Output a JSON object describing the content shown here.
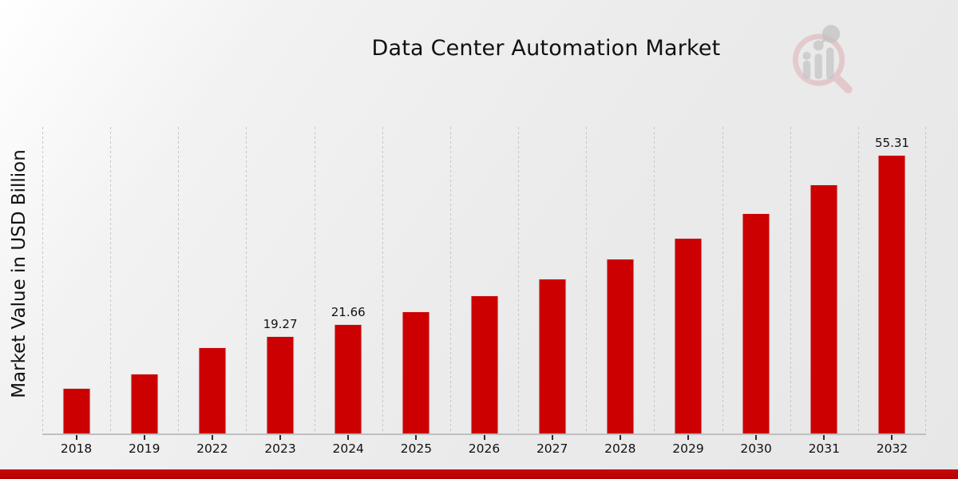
{
  "title": "Data Center Automation Market",
  "y_axis_label": "Market Value in USD Billion",
  "logo": {
    "name": "market-research-future-watermark"
  },
  "colors": {
    "bar": "#cc0000",
    "footer_band": "#b30202",
    "background": "#ebebeb",
    "gridline": "#c6c6c6",
    "text": "#111111",
    "logo_ring": "#dfaeb2",
    "logo_bars": "#c5c5c5"
  },
  "chart_data": {
    "type": "bar",
    "title": "Data Center Automation Market",
    "xlabel": "",
    "ylabel": "Market Value in USD Billion",
    "categories": [
      "2018",
      "2019",
      "2022",
      "2023",
      "2024",
      "2025",
      "2026",
      "2027",
      "2028",
      "2029",
      "2030",
      "2031",
      "2032"
    ],
    "values": [
      9.1,
      11.9,
      17.1,
      19.27,
      21.66,
      24.3,
      27.4,
      30.7,
      34.7,
      38.9,
      43.8,
      49.4,
      55.31
    ],
    "data_labels": [
      "",
      "",
      "",
      "19.27",
      "21.66",
      "",
      "",
      "",
      "",
      "",
      "",
      "",
      "55.31"
    ],
    "ylim": [
      0,
      61.2
    ],
    "y_ticks_visible": false,
    "grid": "vertical-dashed",
    "legend": "none",
    "bar_color": "#cc0000"
  }
}
